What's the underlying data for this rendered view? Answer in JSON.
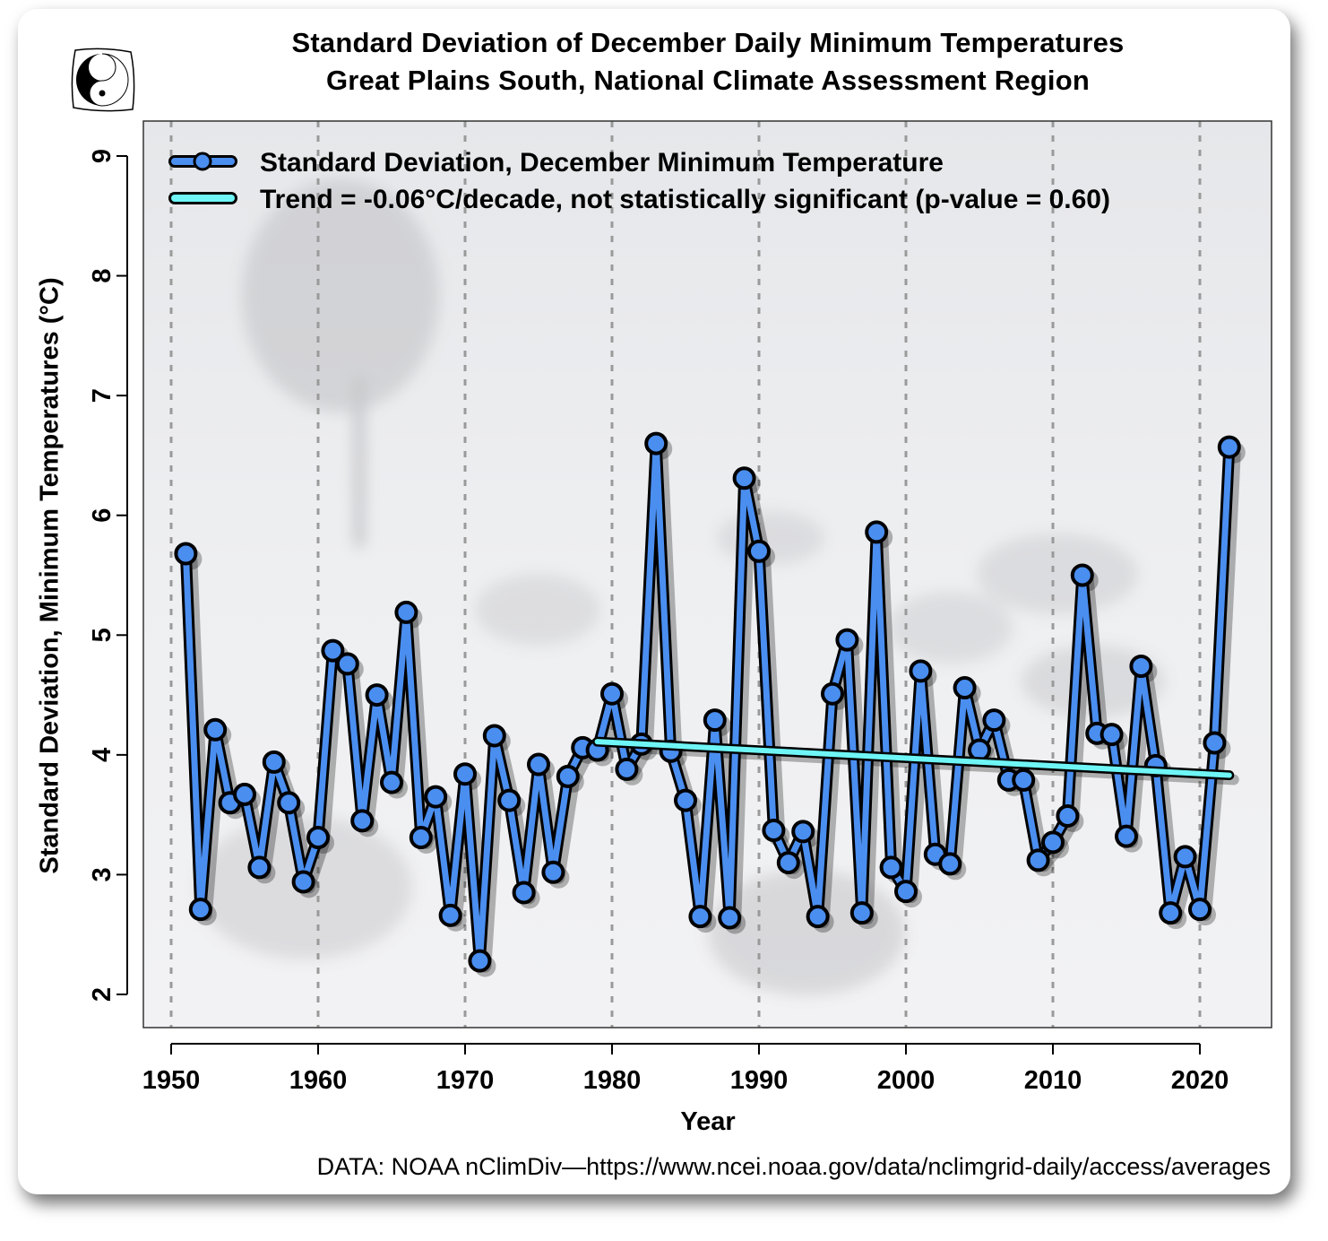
{
  "title_line1": "Standard Deviation of December Daily Minimum Temperatures",
  "title_line2": "Great Plains South, National Climate Assessment Region",
  "logo_icon": "yin-yang-icon",
  "source_note": "DATA: NOAA nClimDiv—https://www.ncei.noaa.gov/data/nclimgrid-daily/access/averages",
  "colors": {
    "series": "#4a8ef0",
    "trend": "#6ff5f5",
    "outline": "#000000",
    "panel": "#eeeff2",
    "grid": "#9a9a9a"
  },
  "chart_data": {
    "type": "line",
    "title": "Standard Deviation of December Daily Minimum Temperatures — Great Plains South, National Climate Assessment Region",
    "xlabel": "Year",
    "ylabel": "Standard Deviation, Minimum Temperatures (°C)",
    "xlim": [
      1948,
      2025
    ],
    "ylim": [
      1.75,
      9.3
    ],
    "x_ticks": [
      1950,
      1960,
      1970,
      1980,
      1990,
      2000,
      2010,
      2020
    ],
    "x_tick_labels": [
      "1950",
      "1960",
      "1970",
      "1980",
      "1990",
      "2000",
      "2010",
      "2020"
    ],
    "y_ticks": [
      2,
      3,
      4,
      5,
      6,
      7,
      8,
      9
    ],
    "y_tick_labels": [
      "2",
      "3",
      "4",
      "5",
      "6",
      "7",
      "8",
      "9"
    ],
    "grid": "vertical dashed at x ticks",
    "legend_position": "top-left",
    "x": [
      1951,
      1952,
      1953,
      1954,
      1955,
      1956,
      1957,
      1958,
      1959,
      1960,
      1961,
      1962,
      1963,
      1964,
      1965,
      1966,
      1967,
      1968,
      1969,
      1970,
      1971,
      1972,
      1973,
      1974,
      1975,
      1976,
      1977,
      1978,
      1979,
      1980,
      1981,
      1982,
      1983,
      1984,
      1985,
      1986,
      1987,
      1988,
      1989,
      1990,
      1991,
      1992,
      1993,
      1994,
      1995,
      1996,
      1997,
      1998,
      1999,
      2000,
      2001,
      2002,
      2003,
      2004,
      2005,
      2006,
      2007,
      2008,
      2009,
      2010,
      2011,
      2012,
      2013,
      2014,
      2015,
      2016,
      2017,
      2018,
      2019,
      2020,
      2021,
      2022
    ],
    "series": [
      {
        "name": "Standard Deviation, December Minimum Temperature",
        "values": [
          5.68,
          2.71,
          4.21,
          3.6,
          3.67,
          3.06,
          3.94,
          3.6,
          2.94,
          3.31,
          4.87,
          4.76,
          3.45,
          4.5,
          3.77,
          5.19,
          3.31,
          3.65,
          2.66,
          3.84,
          2.28,
          4.16,
          3.62,
          2.85,
          3.92,
          3.02,
          3.82,
          4.06,
          4.04,
          4.51,
          3.88,
          4.09,
          6.6,
          4.03,
          3.62,
          2.65,
          4.29,
          2.64,
          6.31,
          5.7,
          3.37,
          3.1,
          3.36,
          2.65,
          4.51,
          4.96,
          2.68,
          5.86,
          3.06,
          2.86,
          4.7,
          3.17,
          3.09,
          4.56,
          4.04,
          4.29,
          3.79,
          3.79,
          3.12,
          3.27,
          3.49,
          5.5,
          4.18,
          4.17,
          3.32,
          4.74,
          3.91,
          2.68,
          3.15,
          2.71,
          4.1,
          6.57
        ]
      },
      {
        "name": "Trend = -0.06°C/decade, not statistically significant (p-value = 0.60)",
        "x": [
          1979,
          2022
        ],
        "values": [
          4.11,
          3.83
        ]
      }
    ],
    "legend": [
      "Standard Deviation, December Minimum Temperature",
      "Trend = -0.06°C/decade, not statistically significant (p-value = 0.60)"
    ]
  }
}
